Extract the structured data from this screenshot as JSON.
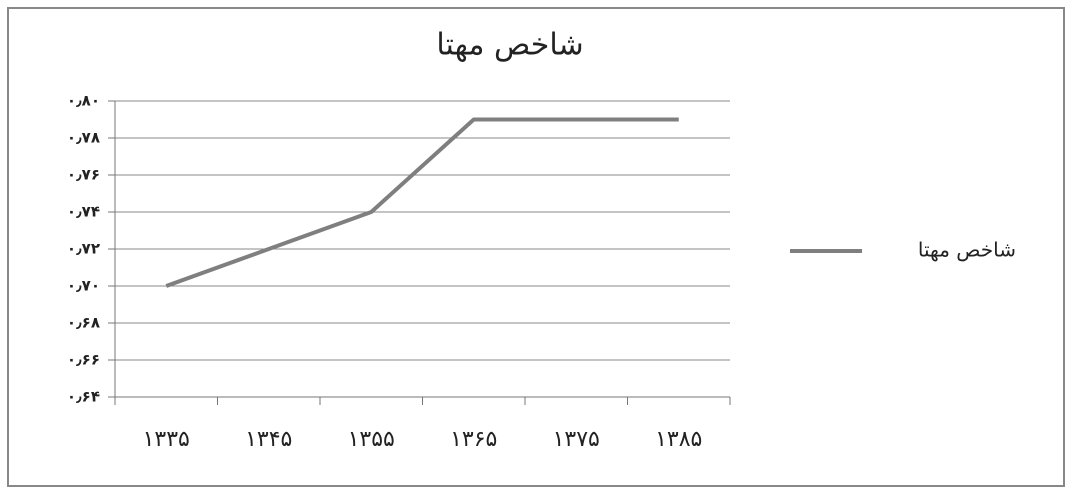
{
  "chart_data": {
    "type": "line",
    "title": "شاخص مهتا",
    "categories": [
      "۱۳۳۵",
      "۱۳۴۵",
      "۱۳۵۵",
      "۱۳۶۵",
      "۱۳۷۵",
      "۱۳۸۵"
    ],
    "series": [
      {
        "name": "شاخص مهتا",
        "color": "#7f7f7f",
        "values": [
          0.7,
          0.72,
          0.74,
          0.79,
          0.79,
          0.79
        ]
      }
    ],
    "ylim": [
      0.64,
      0.8
    ],
    "yticks": [
      {
        "value": 0.64,
        "label": "۰٫۶۴"
      },
      {
        "value": 0.66,
        "label": "۰٫۶۶"
      },
      {
        "value": 0.68,
        "label": "۰٫۶۸"
      },
      {
        "value": 0.7,
        "label": "۰٫۷۰"
      },
      {
        "value": 0.72,
        "label": "۰٫۷۲"
      },
      {
        "value": 0.74,
        "label": "۰٫۷۴"
      },
      {
        "value": 0.76,
        "label": "۰٫۷۶"
      },
      {
        "value": 0.78,
        "label": "۰٫۷۸"
      },
      {
        "value": 0.8,
        "label": "۰٫۸۰"
      }
    ],
    "grid": true,
    "legend": "right"
  }
}
